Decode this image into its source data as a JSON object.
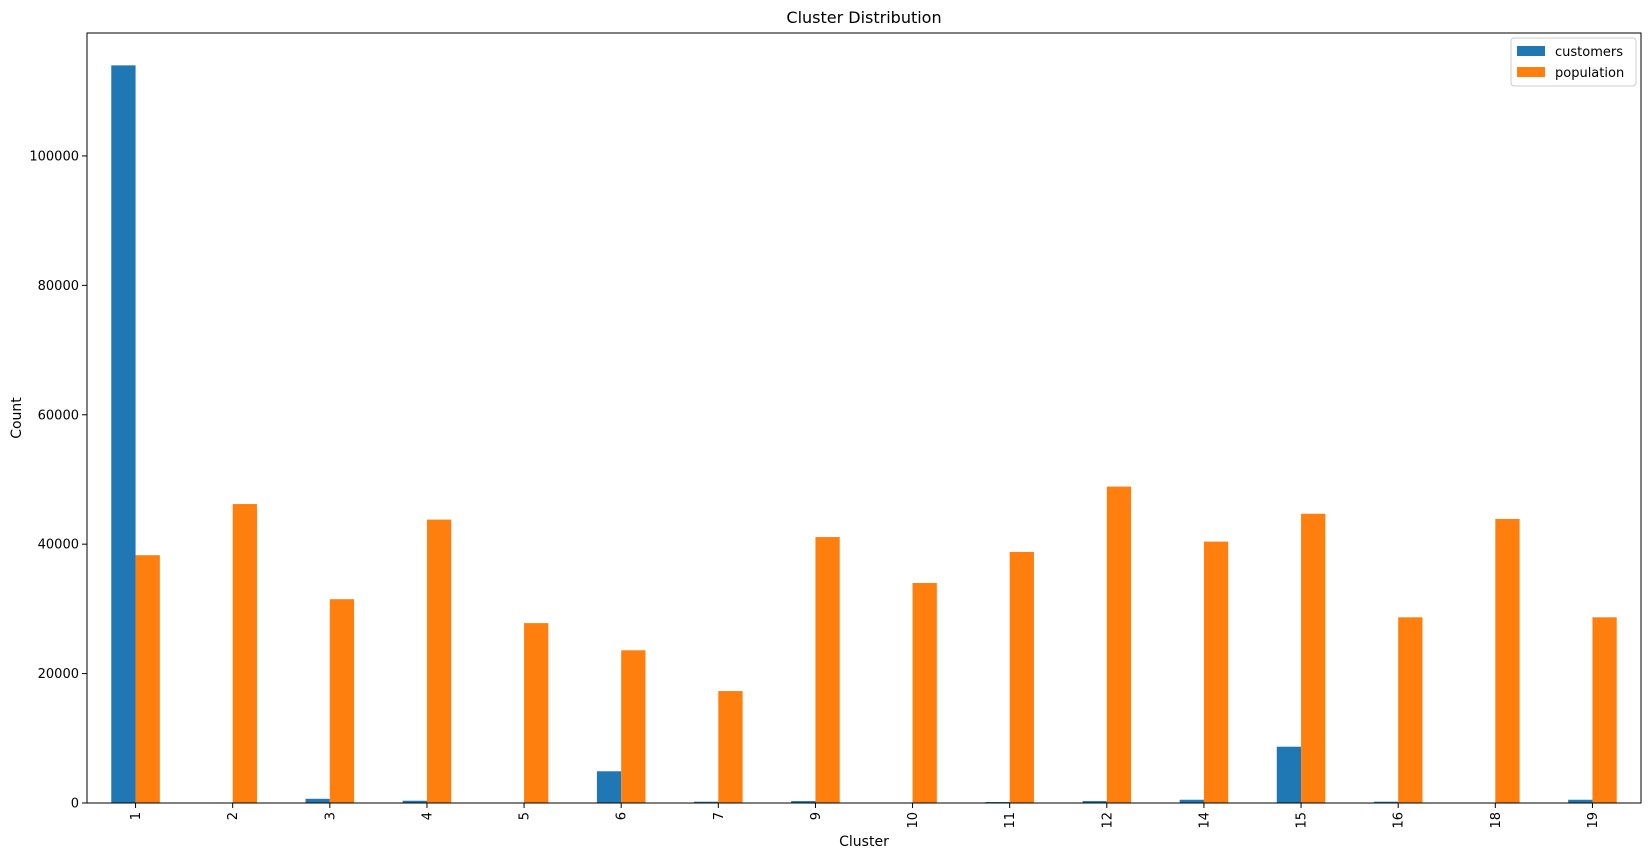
{
  "chart_data": {
    "type": "bar",
    "title": "Cluster Distribution",
    "xlabel": "Cluster",
    "ylabel": "Count",
    "ylim": [
      0,
      119000
    ],
    "yticks": [
      0,
      20000,
      40000,
      60000,
      80000,
      100000
    ],
    "ytick_labels": [
      "0",
      "20000",
      "40000",
      "60000",
      "80000",
      "100000"
    ],
    "categories": [
      "1",
      "2",
      "3",
      "4",
      "5",
      "6",
      "7",
      "9",
      "10",
      "11",
      "12",
      "14",
      "15",
      "16",
      "18",
      "19"
    ],
    "series": [
      {
        "name": "customers",
        "color": "#1f77b4",
        "values": [
          114000,
          80,
          650,
          350,
          60,
          4900,
          200,
          300,
          60,
          150,
          300,
          500,
          8700,
          200,
          60,
          500
        ]
      },
      {
        "name": "population",
        "color": "#ff7f0e",
        "values": [
          38300,
          46200,
          31500,
          43800,
          27800,
          23600,
          17300,
          41100,
          34000,
          38800,
          48900,
          40400,
          44700,
          28700,
          43900,
          28700
        ]
      }
    ],
    "legend_position": "upper right",
    "grid": false
  }
}
